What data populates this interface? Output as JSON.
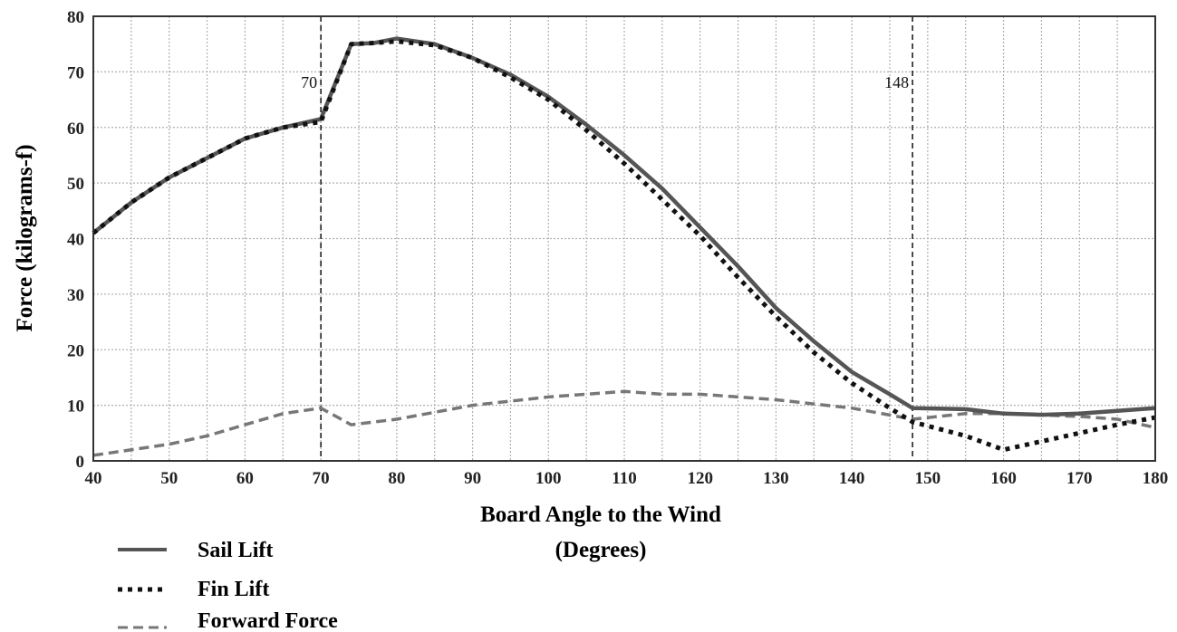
{
  "chart_data": {
    "type": "line",
    "xlabel": "Board Angle to the Wind",
    "xlabel_units": "(Degrees)",
    "ylabel": "Force (kilograms-f)",
    "xlim": [
      40,
      180
    ],
    "ylim": [
      0,
      80
    ],
    "x_ticks": [
      40,
      50,
      60,
      70,
      80,
      90,
      100,
      110,
      120,
      130,
      140,
      150,
      160,
      170,
      180
    ],
    "y_ticks": [
      0,
      10,
      20,
      30,
      40,
      50,
      60,
      70,
      80
    ],
    "grid": true,
    "reference_lines": [
      {
        "x": 70,
        "label": "70"
      },
      {
        "x": 148,
        "label": "148"
      }
    ],
    "series": [
      {
        "name": "Sail Lift",
        "style": "solid",
        "color": "#555555",
        "points": [
          [
            40,
            41
          ],
          [
            45,
            46.5
          ],
          [
            50,
            51
          ],
          [
            55,
            54.5
          ],
          [
            60,
            58
          ],
          [
            65,
            60
          ],
          [
            70,
            61.5
          ],
          [
            74,
            75
          ],
          [
            77,
            75.2
          ],
          [
            80,
            76
          ],
          [
            85,
            75
          ],
          [
            90,
            72.5
          ],
          [
            95,
            69.5
          ],
          [
            100,
            65.5
          ],
          [
            105,
            60.5
          ],
          [
            110,
            55
          ],
          [
            115,
            49
          ],
          [
            120,
            42
          ],
          [
            125,
            35
          ],
          [
            130,
            27.5
          ],
          [
            135,
            21.5
          ],
          [
            140,
            16
          ],
          [
            145,
            12
          ],
          [
            148,
            9.5
          ],
          [
            155,
            9.3
          ],
          [
            160,
            8.5
          ],
          [
            165,
            8.3
          ],
          [
            170,
            8.5
          ],
          [
            175,
            9
          ],
          [
            180,
            9.5
          ]
        ]
      },
      {
        "name": "Fin Lift",
        "style": "dotted",
        "color": "#111111",
        "points": [
          [
            40,
            41
          ],
          [
            45,
            46.5
          ],
          [
            50,
            51
          ],
          [
            55,
            54.5
          ],
          [
            60,
            58
          ],
          [
            65,
            60
          ],
          [
            70,
            61
          ],
          [
            74,
            75
          ],
          [
            77,
            75.2
          ],
          [
            80,
            75.5
          ],
          [
            85,
            74.8
          ],
          [
            90,
            72.5
          ],
          [
            95,
            69
          ],
          [
            100,
            65
          ],
          [
            105,
            59.5
          ],
          [
            110,
            53.5
          ],
          [
            115,
            47
          ],
          [
            120,
            40.5
          ],
          [
            125,
            33
          ],
          [
            130,
            26
          ],
          [
            135,
            19.5
          ],
          [
            140,
            14
          ],
          [
            145,
            9.5
          ],
          [
            148,
            7
          ],
          [
            155,
            4.5
          ],
          [
            160,
            2
          ],
          [
            165,
            3.5
          ],
          [
            170,
            5
          ],
          [
            175,
            6.5
          ],
          [
            180,
            7.8
          ]
        ]
      },
      {
        "name": "Forward Force",
        "style": "dashed",
        "color": "#777777",
        "points": [
          [
            40,
            1
          ],
          [
            50,
            3
          ],
          [
            55,
            4.5
          ],
          [
            60,
            6.5
          ],
          [
            65,
            8.5
          ],
          [
            70,
            9.5
          ],
          [
            72,
            8
          ],
          [
            74,
            6.5
          ],
          [
            80,
            7.5
          ],
          [
            90,
            10
          ],
          [
            100,
            11.5
          ],
          [
            110,
            12.5
          ],
          [
            115,
            12
          ],
          [
            120,
            12
          ],
          [
            125,
            11.5
          ],
          [
            130,
            11
          ],
          [
            140,
            9.5
          ],
          [
            148,
            7.5
          ],
          [
            155,
            8.5
          ],
          [
            160,
            8.5
          ],
          [
            170,
            8
          ],
          [
            175,
            7.5
          ],
          [
            180,
            6
          ]
        ]
      }
    ],
    "legend": [
      {
        "label": "Sail Lift",
        "style": "solid"
      },
      {
        "label": "Fin Lift",
        "style": "dotted"
      },
      {
        "label": "Forward Force",
        "style": "dashed"
      }
    ],
    "legend_position": "bottom-left"
  },
  "colors": {
    "grid": "#b0b0b0",
    "axis": "#333333",
    "reference_line": "#222222"
  }
}
